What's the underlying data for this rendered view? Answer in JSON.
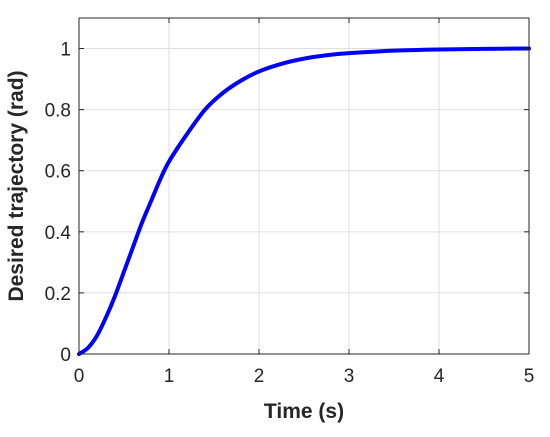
{
  "chart_data": {
    "type": "line",
    "title": "",
    "xlabel": "Time (s)",
    "ylabel": "Desired trajectory (rad)",
    "xlim": [
      0,
      5
    ],
    "ylim": [
      0,
      1.1
    ],
    "xticks": [
      0,
      1,
      2,
      3,
      4,
      5
    ],
    "yticks": [
      0,
      0.2,
      0.4,
      0.6,
      0.8,
      1
    ],
    "xtick_labels": [
      "0",
      "1",
      "2",
      "3",
      "4",
      "5"
    ],
    "ytick_labels": [
      "0",
      "0.2",
      "0.4",
      "0.6",
      "0.8",
      "1"
    ],
    "grid": true,
    "legend": "none",
    "series": [
      {
        "color": "#0000ff",
        "x": [
          0,
          0.1,
          0.2,
          0.3,
          0.4,
          0.5,
          0.6,
          0.7,
          0.8,
          0.9,
          1.0,
          1.2,
          1.4,
          1.6,
          1.8,
          2.0,
          2.25,
          2.5,
          2.75,
          3.0,
          3.5,
          4.0,
          4.5,
          5.0
        ],
        "y": [
          0,
          0.02,
          0.06,
          0.12,
          0.19,
          0.27,
          0.35,
          0.43,
          0.5,
          0.57,
          0.63,
          0.72,
          0.8,
          0.855,
          0.895,
          0.925,
          0.95,
          0.967,
          0.978,
          0.985,
          0.993,
          0.997,
          0.999,
          1.0
        ]
      }
    ]
  }
}
